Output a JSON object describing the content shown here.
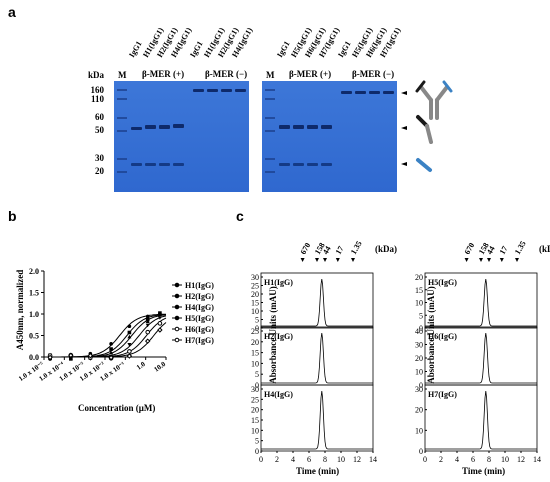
{
  "panels": {
    "a": "a",
    "b": "b",
    "c": "c"
  },
  "gel": {
    "kda_title": "kDa",
    "marker_label": "M",
    "kda_ticks": [
      "160",
      "110",
      "60",
      "50",
      "30",
      "20"
    ],
    "left_lanes": [
      "IgG1",
      "H1(IgG1)",
      "H2(IgG1)",
      "H4(IgG1)",
      "IgG1",
      "H1(IgG1)",
      "H2(IgG1)",
      "H4(IgG1)"
    ],
    "right_lanes": [
      "IgG1",
      "H5(IgG1)",
      "H6(IgG1)",
      "H7(IgG1)",
      "IgG1",
      "H5(IgG1)",
      "H6(IgG1)",
      "H7(IgG1)"
    ],
    "group_plus": "β-MER (+)",
    "group_minus": "β-MER (−)"
  },
  "panel_b": {
    "ylabel": "A450nm, normalized",
    "xlabel": "Concentration (μM)",
    "yticks": [
      "0.0",
      "0.5",
      "1.0",
      "1.5",
      "2.0"
    ],
    "xticks": [
      "1.0 x 10⁻⁵",
      "1.0 x 10⁻⁴",
      "1.0 x 10⁻³",
      "1.0 x 10⁻²",
      "1.0 x 10⁻¹",
      "1.0",
      "10.0"
    ],
    "legend": [
      "H1(IgG)",
      "H2(IgG)",
      "H4(IgG)",
      "H5(IgG)",
      "H6(IgG)",
      "H7(IgG)"
    ]
  },
  "panel_c": {
    "ylabel": "Absorbance Units (mAU)",
    "xlabel": "Time (min)",
    "kda_unit": "(kDa)",
    "markers": [
      "670",
      "158",
      "44",
      "17",
      "1.35"
    ],
    "xticks": [
      "0",
      "2",
      "4",
      "6",
      "8",
      "10",
      "12",
      "14"
    ],
    "plots": [
      {
        "label": "H1(IgG)",
        "yticks": [
          "0",
          "5",
          "10",
          "15",
          "20",
          "25",
          "30"
        ]
      },
      {
        "label": "H2(IgG)",
        "yticks": [
          "0",
          "5",
          "10",
          "15",
          "20",
          "25"
        ]
      },
      {
        "label": "H4(IgG)",
        "yticks": [
          "0",
          "5",
          "10",
          "15",
          "20",
          "25",
          "30"
        ]
      },
      {
        "label": "H5(IgG)",
        "yticks": [
          "0",
          "5",
          "10",
          "15",
          "20"
        ]
      },
      {
        "label": "H6(IgG)",
        "yticks": [
          "0",
          "10",
          "20",
          "30",
          "40"
        ]
      },
      {
        "label": "H7(IgG)",
        "yticks": [
          "0",
          "10",
          "20",
          "30"
        ]
      }
    ]
  }
}
